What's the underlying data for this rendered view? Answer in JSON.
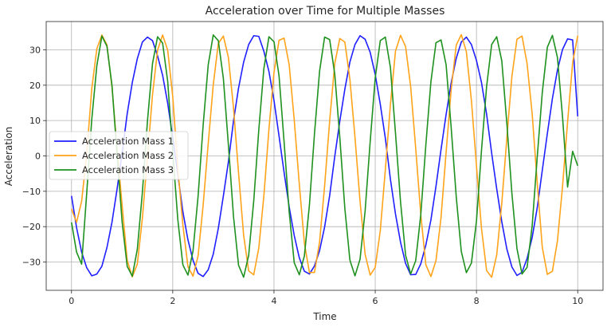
{
  "chart_data": {
    "type": "line",
    "title": "Acceleration over Time for Multiple Masses",
    "xlabel": "Time",
    "ylabel": "Acceleration",
    "xlim": [
      -0.5,
      10.5
    ],
    "ylim": [
      -38,
      38
    ],
    "xticks": [
      0,
      2,
      4,
      6,
      8,
      10
    ],
    "yticks": [
      -30,
      -20,
      -10,
      0,
      10,
      20,
      30
    ],
    "grid": true,
    "legend_position": "center-left",
    "x": [
      0.0,
      0.1,
      0.2,
      0.3,
      0.4,
      0.5,
      0.6,
      0.7,
      0.8,
      0.9,
      1.0,
      1.1,
      1.2,
      1.3,
      1.4,
      1.5,
      1.6,
      1.7,
      1.8,
      1.9,
      2.0,
      2.1,
      2.2,
      2.3,
      2.4,
      2.5,
      2.6,
      2.7,
      2.8,
      2.9,
      3.0,
      3.1,
      3.2,
      3.3,
      3.4,
      3.5,
      3.6,
      3.7,
      3.8,
      3.9,
      4.0,
      4.1,
      4.2,
      4.3,
      4.4,
      4.5,
      4.6,
      4.7,
      4.8,
      4.9,
      5.0,
      5.1,
      5.2,
      5.3,
      5.4,
      5.5,
      5.6,
      5.7,
      5.8,
      5.9,
      6.0,
      6.1,
      6.2,
      6.3,
      6.4,
      6.5,
      6.6,
      6.7,
      6.8,
      6.9,
      7.0,
      7.1,
      7.2,
      7.3,
      7.4,
      7.5,
      7.6,
      7.7,
      7.8,
      7.9,
      8.0,
      8.1,
      8.2,
      8.3,
      8.4,
      8.5,
      8.6,
      8.7,
      8.8,
      8.9,
      9.0,
      9.1,
      9.2,
      9.3,
      9.4,
      9.5,
      9.6,
      9.7,
      9.8,
      9.9,
      10.0
    ],
    "series": [
      {
        "name": "Acceleration Mass 1",
        "color": "#1f1fff",
        "values": [
          -11.3,
          -20.3,
          -27.2,
          -31.6,
          -33.9,
          -33.4,
          -31.2,
          -25.9,
          -18.7,
          -9.4,
          0.8,
          11.9,
          20.7,
          27.5,
          32.2,
          33.6,
          32.6,
          28.3,
          22.8,
          14.9,
          5.1,
          -5.2,
          -15.8,
          -23.7,
          -29.5,
          -33.2,
          -34.1,
          -32.2,
          -27.8,
          -20.5,
          -11.3,
          -1.6,
          9.9,
          19.2,
          26.5,
          31.5,
          34.0,
          33.8,
          29.6,
          23.9,
          15.7,
          5.6,
          -4.7,
          -14.4,
          -22.5,
          -28.8,
          -32.6,
          -33.4,
          -31.1,
          -26.8,
          -20.1,
          -11.2,
          -0.2,
          9.8,
          18.9,
          26.6,
          31.5,
          34.0,
          33.0,
          29.3,
          23.0,
          14.6,
          5.0,
          -6.6,
          -16.4,
          -24.4,
          -30.4,
          -33.6,
          -33.5,
          -30.5,
          -25.2,
          -18.1,
          -8.6,
          1.8,
          11.7,
          20.6,
          27.6,
          32.2,
          33.6,
          31.5,
          27.0,
          20.7,
          11.8,
          0.8,
          -9.3,
          -18.6,
          -26.3,
          -31.4,
          -33.8,
          -32.9,
          -29.0,
          -23.1,
          -14.7,
          -4.1,
          6.3,
          16.2,
          24.3,
          30.1,
          33.1,
          32.8,
          11.2
        ]
      },
      {
        "name": "Acceleration Mass 2",
        "color": "#ffa31a",
        "values": [
          -15.0,
          -18.8,
          -12.8,
          0.5,
          19.0,
          30.3,
          34.2,
          31.4,
          19.4,
          2.1,
          -14.0,
          -29.5,
          -34.2,
          -30.6,
          -17.6,
          -0.3,
          17.3,
          29.9,
          34.2,
          29.9,
          16.8,
          -3.4,
          -19.5,
          -31.3,
          -34.0,
          -28.3,
          -14.0,
          3.4,
          20.1,
          31.8,
          33.9,
          27.8,
          13.6,
          -4.8,
          -22.4,
          -32.5,
          -33.6,
          -26.0,
          -11.3,
          7.5,
          23.6,
          32.7,
          33.3,
          25.8,
          10.2,
          -8.0,
          -24.6,
          -33.0,
          -32.9,
          -24.4,
          -8.5,
          9.9,
          26.1,
          33.2,
          32.2,
          21.6,
          5.3,
          -12.8,
          -27.8,
          -33.7,
          -31.5,
          -21.1,
          -3.9,
          14.5,
          29.6,
          34.1,
          30.9,
          19.6,
          2.1,
          -16.6,
          -30.8,
          -34.1,
          -29.6,
          -17.4,
          1.0,
          18.7,
          31.3,
          34.3,
          29.5,
          15.7,
          -2.8,
          -20.6,
          -32.4,
          -34.3,
          -28.0,
          -13.4,
          5.0,
          22.5,
          33.0,
          33.9,
          26.1,
          12.0,
          -7.5,
          -25.8,
          -33.5,
          -32.6,
          -24.0,
          -8.7,
          9.6,
          26.4,
          34.0
        ]
      },
      {
        "name": "Acceleration Mass 3",
        "color": "#1e911e",
        "values": [
          -18.8,
          -27.2,
          -30.6,
          -10.6,
          10.3,
          25.5,
          33.9,
          31.0,
          19.9,
          0.4,
          -18.7,
          -31.2,
          -34.0,
          -26.4,
          -10.3,
          9.8,
          26.1,
          33.7,
          31.9,
          21.1,
          1.2,
          -18.0,
          -30.8,
          -33.7,
          -26.9,
          -11.5,
          8.6,
          25.7,
          34.2,
          32.6,
          21.9,
          3.0,
          -17.1,
          -30.9,
          -34.3,
          -28.1,
          -12.7,
          7.4,
          24.7,
          33.7,
          32.3,
          22.6,
          3.9,
          -15.8,
          -30.2,
          -33.6,
          -28.3,
          -13.9,
          6.3,
          23.9,
          33.6,
          32.9,
          23.2,
          5.3,
          -14.9,
          -29.5,
          -33.9,
          -29.2,
          -15.6,
          4.0,
          22.1,
          32.6,
          33.6,
          25.0,
          6.5,
          -13.0,
          -28.1,
          -33.4,
          -29.6,
          -16.6,
          3.1,
          21.0,
          32.0,
          32.8,
          25.8,
          8.1,
          -11.5,
          -27.0,
          -33.0,
          -30.3,
          -18.4,
          1.7,
          19.6,
          31.5,
          33.7,
          26.9,
          9.3,
          -10.6,
          -26.2,
          -33.4,
          -31.5,
          -19.8,
          -0.4,
          17.9,
          30.7,
          34.1,
          27.8,
          11.1,
          -8.8,
          1.3,
          -2.8
        ]
      }
    ]
  }
}
